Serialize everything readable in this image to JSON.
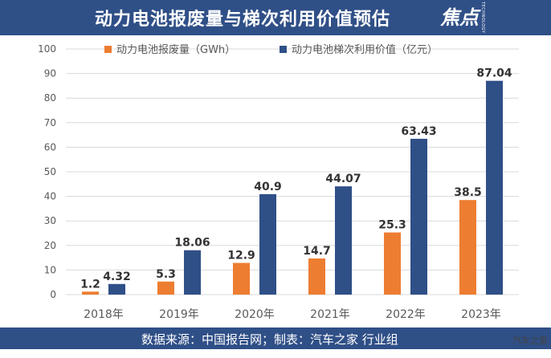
{
  "header": {
    "title": "动力电池报废量与梯次利用价值预估",
    "logo_text": "焦点",
    "logo_subtext": "TECHNOLOGY"
  },
  "footer": {
    "source": "数据来源：中国报告网；制表：汽车之家 行业组"
  },
  "watermark": "汽车之家",
  "colors": {
    "header_bg": "#2f4f87",
    "series1": "#ed7d31",
    "series2": "#2f4f87",
    "grid": "#d9d9d9",
    "axis_text": "#595959"
  },
  "chart_data": {
    "type": "bar",
    "categories": [
      "2018年",
      "2019年",
      "2020年",
      "2021年",
      "2022年",
      "2023年"
    ],
    "series": [
      {
        "name": "动力电池报废量（GWh）",
        "values": [
          1.2,
          5.3,
          12.9,
          14.7,
          25.3,
          38.5
        ],
        "labels": [
          "1.2",
          "5.3",
          "12.9",
          "14.7",
          "25.3",
          "38.5"
        ]
      },
      {
        "name": "动力电池梯次利用价值（亿元）",
        "values": [
          4.32,
          18.06,
          40.9,
          44.07,
          63.43,
          87.04
        ],
        "labels": [
          "4.32",
          "18.06",
          "40.9",
          "44.07",
          "63.43",
          "87.04"
        ]
      }
    ],
    "ylim": [
      0,
      100
    ],
    "yticks": [
      "0",
      "10",
      "20",
      "30",
      "40",
      "50",
      "60",
      "70",
      "80",
      "90",
      "100"
    ],
    "grid": true,
    "legend_position": "top-left"
  }
}
